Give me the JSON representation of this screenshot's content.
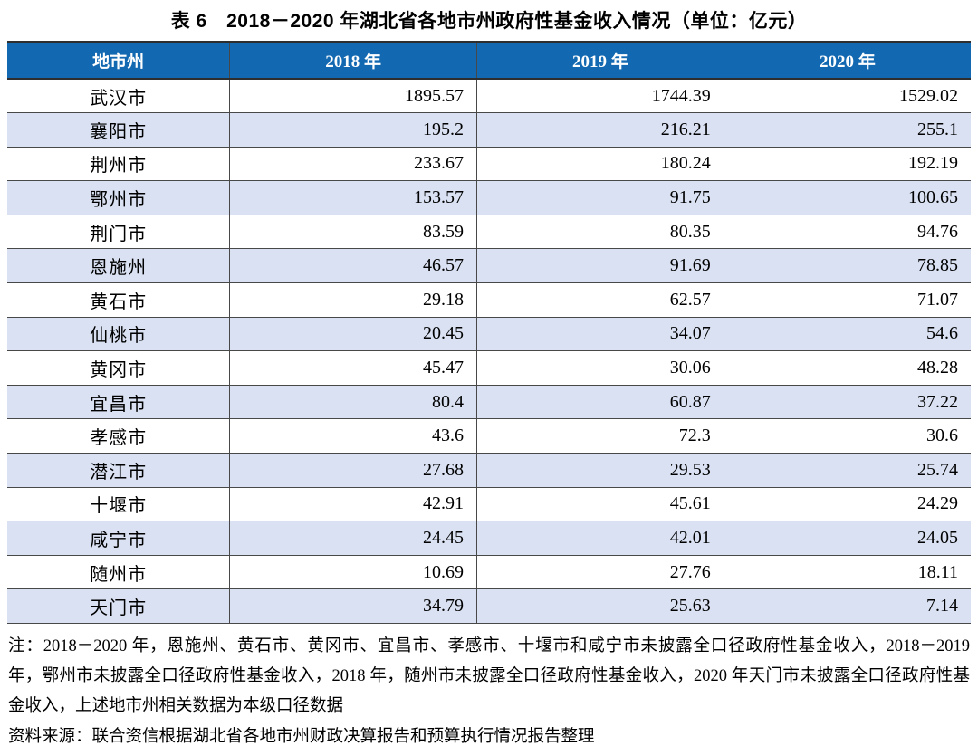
{
  "title": "表 6　2018－2020 年湖北省各地市州政府性基金收入情况（单位：亿元）",
  "colors": {
    "header_bg": "#1268B1",
    "header_text": "#ffffff",
    "row_alt_bg": "#D9E1F2",
    "border": "#484848"
  },
  "table": {
    "headers": [
      "地市州",
      "2018 年",
      "2019 年",
      "2020 年"
    ],
    "rows": [
      {
        "city": "武汉市",
        "y2018": "1895.57",
        "y2019": "1744.39",
        "y2020": "1529.02"
      },
      {
        "city": "襄阳市",
        "y2018": "195.2",
        "y2019": "216.21",
        "y2020": "255.1"
      },
      {
        "city": "荆州市",
        "y2018": "233.67",
        "y2019": "180.24",
        "y2020": "192.19"
      },
      {
        "city": "鄂州市",
        "y2018": "153.57",
        "y2019": "91.75",
        "y2020": "100.65"
      },
      {
        "city": "荆门市",
        "y2018": "83.59",
        "y2019": "80.35",
        "y2020": "94.76"
      },
      {
        "city": "恩施州",
        "y2018": "46.57",
        "y2019": "91.69",
        "y2020": "78.85"
      },
      {
        "city": "黄石市",
        "y2018": "29.18",
        "y2019": "62.57",
        "y2020": "71.07"
      },
      {
        "city": "仙桃市",
        "y2018": "20.45",
        "y2019": "34.07",
        "y2020": "54.6"
      },
      {
        "city": "黄冈市",
        "y2018": "45.47",
        "y2019": "30.06",
        "y2020": "48.28"
      },
      {
        "city": "宜昌市",
        "y2018": "80.4",
        "y2019": "60.87",
        "y2020": "37.22"
      },
      {
        "city": "孝感市",
        "y2018": "43.6",
        "y2019": "72.3",
        "y2020": "30.6"
      },
      {
        "city": "潜江市",
        "y2018": "27.68",
        "y2019": "29.53",
        "y2020": "25.74"
      },
      {
        "city": "十堰市",
        "y2018": "42.91",
        "y2019": "45.61",
        "y2020": "24.29"
      },
      {
        "city": "咸宁市",
        "y2018": "24.45",
        "y2019": "42.01",
        "y2020": "24.05"
      },
      {
        "city": "随州市",
        "y2018": "10.69",
        "y2019": "27.76",
        "y2020": "18.11"
      },
      {
        "city": "天门市",
        "y2018": "34.79",
        "y2019": "25.63",
        "y2020": "7.14"
      }
    ]
  },
  "notes": {
    "note_text": "注：2018－2020 年，恩施州、黄石市、黄冈市、宜昌市、孝感市、十堰市和咸宁市未披露全口径政府性基金收入，2018－2019 年，鄂州市未披露全口径政府性基金收入，2018 年，随州市未披露全口径政府性基金收入，2020 年天门市未披露全口径政府性基金收入，上述地市州相关数据为本级口径数据",
    "source_text": "资料来源：联合资信根据湖北省各地市州财政决算报告和预算执行情况报告整理"
  }
}
